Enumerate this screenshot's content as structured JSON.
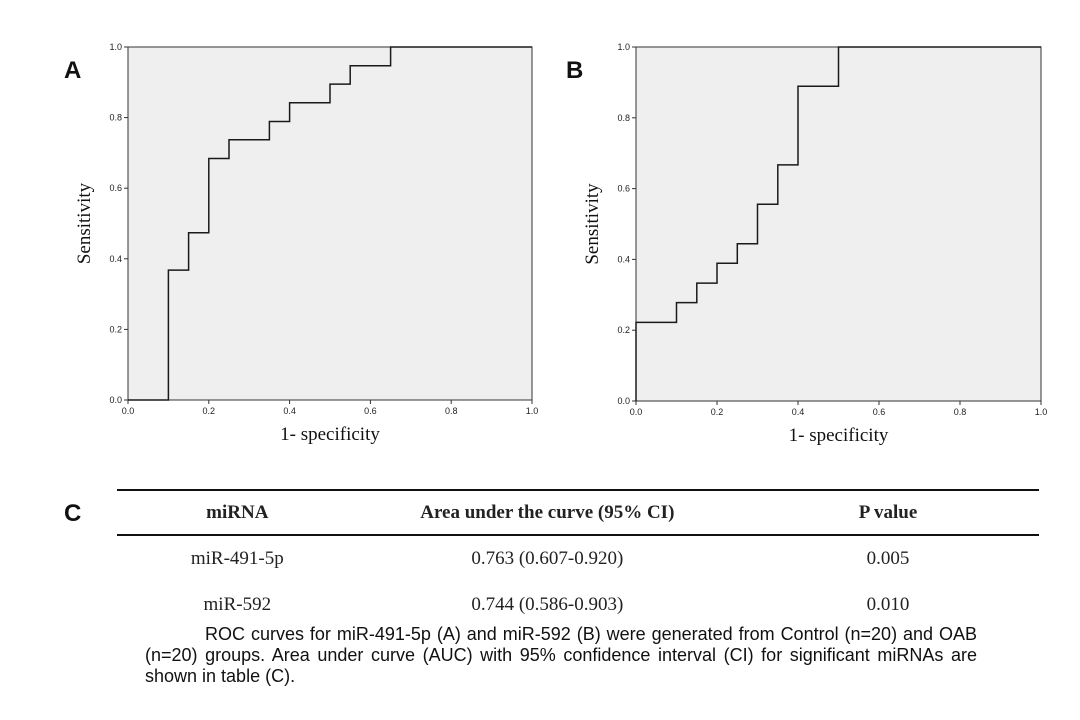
{
  "panels": {
    "a_label": "A",
    "b_label": "B",
    "c_label": "C"
  },
  "chart_data": [
    {
      "type": "line",
      "panel": "A",
      "series": [
        {
          "x": [
            0.0,
            0.1,
            0.1,
            0.15,
            0.15,
            0.2,
            0.2,
            0.25,
            0.25,
            0.35,
            0.35,
            0.4,
            0.4,
            0.5,
            0.5,
            0.55,
            0.55,
            0.65,
            0.65,
            1.0
          ],
          "y": [
            0.0,
            0.0,
            0.368,
            0.368,
            0.474,
            0.474,
            0.684,
            0.684,
            0.737,
            0.737,
            0.789,
            0.789,
            0.842,
            0.842,
            0.895,
            0.895,
            0.947,
            0.947,
            1.0,
            1.0
          ]
        }
      ],
      "xlabel": "1- specificity",
      "ylabel": "Sensitivity",
      "xlim": [
        0,
        1
      ],
      "ylim": [
        0,
        1
      ],
      "xticks": [
        "0.0",
        "0.2",
        "0.4",
        "0.6",
        "0.8",
        "1.0"
      ],
      "yticks": [
        "0.0",
        "0.2",
        "0.4",
        "0.6",
        "0.8",
        "1.0"
      ],
      "grid": false,
      "background": "#efefef"
    },
    {
      "type": "line",
      "panel": "B",
      "series": [
        {
          "x": [
            0.0,
            0.0,
            0.1,
            0.1,
            0.15,
            0.15,
            0.2,
            0.2,
            0.25,
            0.25,
            0.3,
            0.3,
            0.35,
            0.35,
            0.4,
            0.4,
            0.5,
            0.5,
            1.0
          ],
          "y": [
            0.0,
            0.222,
            0.222,
            0.278,
            0.278,
            0.333,
            0.333,
            0.389,
            0.389,
            0.444,
            0.444,
            0.556,
            0.556,
            0.667,
            0.667,
            0.889,
            0.889,
            1.0,
            1.0
          ]
        }
      ],
      "xlabel": "1- specificity",
      "ylabel": "Sensitivity",
      "xlim": [
        0,
        1
      ],
      "ylim": [
        0,
        1
      ],
      "xticks": [
        "0.0",
        "0.2",
        "0.4",
        "0.6",
        "0.8",
        "1.0"
      ],
      "yticks": [
        "0.0",
        "0.2",
        "0.4",
        "0.6",
        "0.8",
        "1.0"
      ],
      "grid": false,
      "background": "#efefef"
    },
    {
      "type": "table",
      "panel": "C",
      "columns": [
        "miRNA",
        "Area under the curve (95% CI)",
        "P value"
      ],
      "rows": [
        [
          "miR-491-5p",
          "0.763 (0.607-0.920)",
          "0.005"
        ],
        [
          "miR-592",
          "0.744 (0.586-0.903)",
          "0.010"
        ]
      ]
    }
  ],
  "caption": "ROC curves for miR-491-5p (A) and miR-592 (B) were generated from Control (n=20) and OAB (n=20) groups. Area under curve (AUC) with 95% confidence interval (CI) for significant miRNAs are shown in table (C)."
}
